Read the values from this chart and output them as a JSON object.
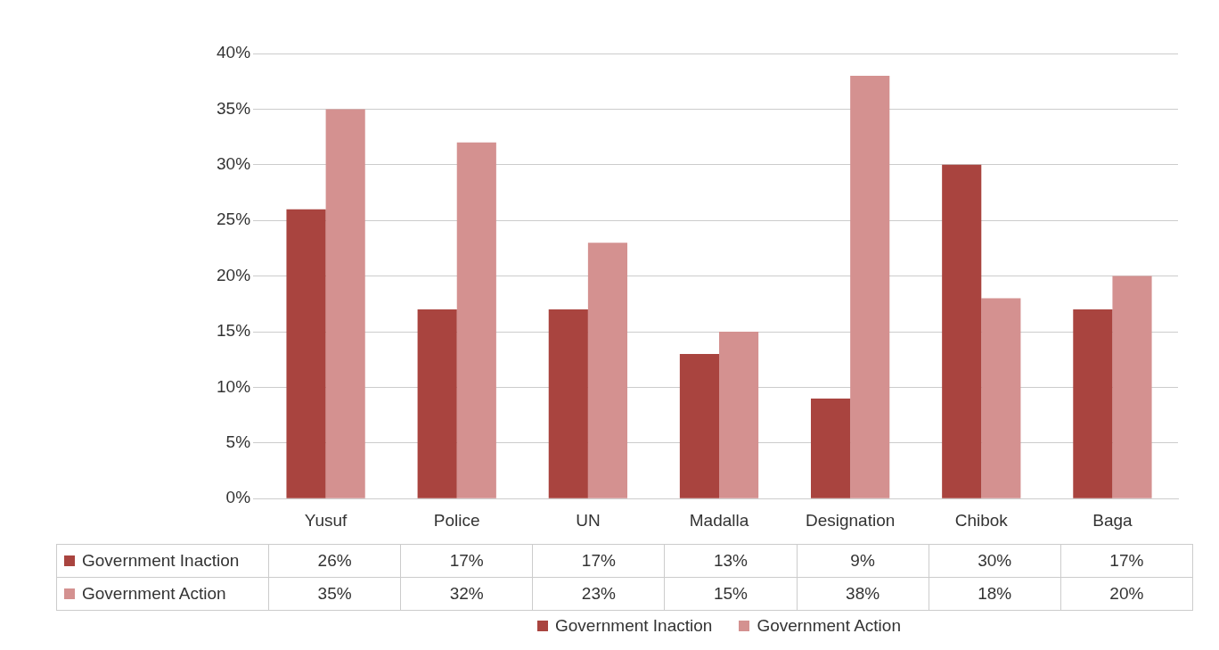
{
  "chart_data": {
    "type": "bar",
    "categories": [
      "Yusuf",
      "Police",
      "UN",
      "Madalla",
      "Designation",
      "Chibok",
      "Baga"
    ],
    "series": [
      {
        "name": "Government Inaction",
        "color": "#a9443f",
        "values": [
          26,
          17,
          17,
          13,
          9,
          30,
          17
        ],
        "value_labels": [
          "26%",
          "17%",
          "17%",
          "13%",
          "9%",
          "30%",
          "17%"
        ]
      },
      {
        "name": "Government Action",
        "color": "#d49190",
        "values": [
          35,
          32,
          23,
          15,
          38,
          18,
          20
        ],
        "value_labels": [
          "35%",
          "32%",
          "23%",
          "15%",
          "38%",
          "18%",
          "20%"
        ]
      }
    ],
    "ylim": [
      0,
      40
    ],
    "yticks": [
      {
        "value": 0,
        "label": "0%"
      },
      {
        "value": 5,
        "label": "5%"
      },
      {
        "value": 10,
        "label": "10%"
      },
      {
        "value": 15,
        "label": "15%"
      },
      {
        "value": 20,
        "label": "20%"
      },
      {
        "value": 25,
        "label": "25%"
      },
      {
        "value": 30,
        "label": "30%"
      },
      {
        "value": 35,
        "label": "35%"
      },
      {
        "value": 40,
        "label": "40%"
      }
    ],
    "grid": "y",
    "legend": "bottom"
  }
}
